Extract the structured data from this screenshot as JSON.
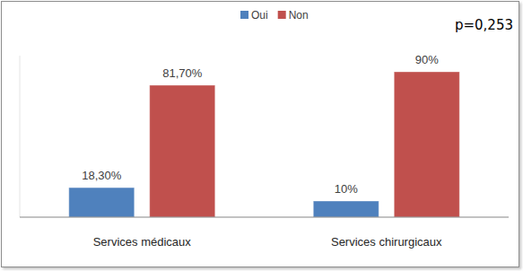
{
  "chart_data": {
    "type": "bar",
    "categories": [
      "Services médicaux",
      "Services chirurgicaux"
    ],
    "series": [
      {
        "name": "Oui",
        "color": "#4f81bd",
        "values": [
          18.3,
          10
        ],
        "value_labels": [
          "18,30%",
          "10%"
        ]
      },
      {
        "name": "Non",
        "color": "#c0504d",
        "values": [
          81.7,
          90
        ],
        "value_labels": [
          "81,70%",
          "90%"
        ]
      }
    ],
    "ylim": [
      0,
      100
    ],
    "data_labels": true,
    "legend": "top",
    "grid": false,
    "tick_labels": "x",
    "annotation": "p=0,253"
  }
}
